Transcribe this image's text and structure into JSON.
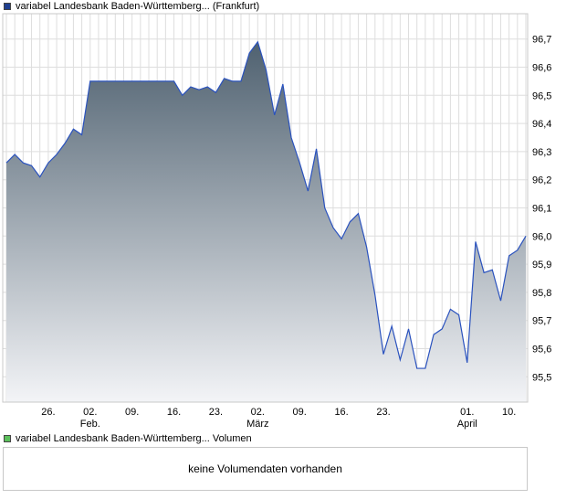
{
  "legend_price": {
    "label": "variabel Landesbank Baden-Württemberg... (Frankfurt)",
    "color": "#1f3f8f"
  },
  "legend_volume": {
    "label": "variabel Landesbank Baden-Württemberg... Volumen",
    "color": "#5cc05c"
  },
  "volume_message": "keine Volumendaten vorhanden",
  "chart_data": {
    "type": "area",
    "series": [
      {
        "values": [
          96.26,
          96.29,
          96.26,
          96.25,
          96.21,
          96.26,
          96.29,
          96.33,
          96.38,
          96.36,
          96.55,
          96.55,
          96.55,
          96.55,
          96.55,
          96.55,
          96.55,
          96.55,
          96.55,
          96.55,
          96.55,
          96.5,
          96.53,
          96.52,
          96.53,
          96.51,
          96.56,
          96.55,
          96.55,
          96.65,
          96.69,
          96.59,
          96.43,
          96.54,
          96.35,
          96.26,
          96.16,
          96.31,
          96.1,
          96.03,
          95.99,
          96.05,
          96.08,
          95.96,
          95.79,
          95.58,
          95.68,
          95.56,
          95.67,
          95.53,
          95.53,
          95.65,
          95.67,
          95.74,
          95.72,
          95.55,
          95.98,
          95.87,
          95.88,
          95.77,
          95.93,
          95.95,
          96.0
        ]
      }
    ],
    "ylim": [
      95.41,
      96.79
    ],
    "y_ticks": [
      "96,7",
      "96,6",
      "96,5",
      "96,4",
      "96,3",
      "96,2",
      "96,1",
      "96,0",
      "95,9",
      "95,8",
      "95,7",
      "95,6",
      "95,5"
    ],
    "y_tick_values": [
      96.7,
      96.6,
      96.5,
      96.4,
      96.3,
      96.2,
      96.1,
      96.0,
      95.9,
      95.8,
      95.7,
      95.6,
      95.5
    ],
    "x_ticks": [
      {
        "index": 5,
        "day": "26.",
        "month": ""
      },
      {
        "index": 10,
        "day": "02.",
        "month": "Feb."
      },
      {
        "index": 15,
        "day": "09.",
        "month": ""
      },
      {
        "index": 20,
        "day": "16.",
        "month": ""
      },
      {
        "index": 25,
        "day": "23.",
        "month": ""
      },
      {
        "index": 30,
        "day": "02.",
        "month": "März"
      },
      {
        "index": 35,
        "day": "09.",
        "month": ""
      },
      {
        "index": 40,
        "day": "16.",
        "month": ""
      },
      {
        "index": 45,
        "day": "23.",
        "month": ""
      },
      {
        "index": 50,
        "day": "",
        "month": ""
      },
      {
        "index": 55,
        "day": "01.",
        "month": "April"
      },
      {
        "index": 60,
        "day": "10.",
        "month": ""
      }
    ],
    "grid": true,
    "line_color": "#2a52be",
    "fill_top_color": "#4f6170",
    "fill_bottom_color": "#f3f4f7"
  }
}
